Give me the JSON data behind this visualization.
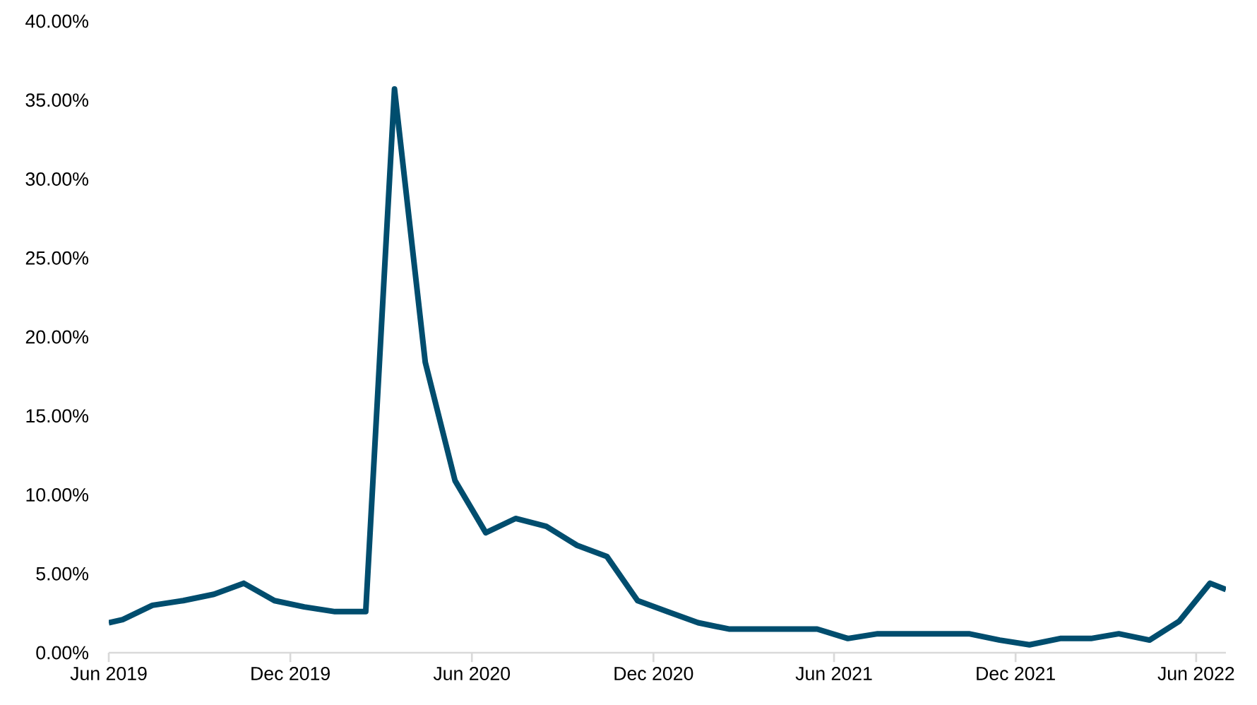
{
  "chart_data": {
    "type": "line",
    "x": [
      "2019-06-01",
      "2019-06-15",
      "2019-07-15",
      "2019-08-15",
      "2019-09-15",
      "2019-10-15",
      "2019-11-15",
      "2019-12-15",
      "2020-01-15",
      "2020-02-15",
      "2020-03-15",
      "2020-04-15",
      "2020-05-15",
      "2020-06-15",
      "2020-07-15",
      "2020-08-15",
      "2020-09-15",
      "2020-10-15",
      "2020-11-15",
      "2020-12-15",
      "2021-01-15",
      "2021-02-15",
      "2021-03-15",
      "2021-04-15",
      "2021-05-15",
      "2021-06-15",
      "2021-07-15",
      "2021-08-15",
      "2021-09-15",
      "2021-10-15",
      "2021-11-15",
      "2021-12-15",
      "2022-01-15",
      "2022-02-15",
      "2022-03-15",
      "2022-04-15",
      "2022-05-15",
      "2022-06-15",
      "2022-07-01"
    ],
    "series": [
      {
        "color": "#004d6e",
        "values": [
          1.9,
          2.1,
          3.0,
          3.3,
          3.7,
          4.4,
          3.3,
          2.9,
          2.6,
          2.6,
          35.7,
          18.4,
          10.9,
          7.6,
          8.5,
          8.0,
          6.8,
          6.1,
          3.3,
          2.6,
          1.9,
          1.5,
          1.5,
          1.5,
          1.5,
          0.9,
          1.2,
          1.2,
          1.2,
          1.2,
          0.8,
          0.5,
          0.9,
          0.9,
          1.2,
          0.8,
          2.0,
          4.4,
          4.0
        ]
      }
    ],
    "xlim": [
      "2019-06-01",
      "2022-07-01"
    ],
    "xticks": [
      {
        "value": "2019-06-01",
        "label": "Jun 2019"
      },
      {
        "value": "2019-12-01",
        "label": "Dec 2019"
      },
      {
        "value": "2020-06-01",
        "label": "Jun 2020"
      },
      {
        "value": "2020-12-01",
        "label": "Dec 2020"
      },
      {
        "value": "2021-06-01",
        "label": "Jun 2021"
      },
      {
        "value": "2021-12-01",
        "label": "Dec 2021"
      },
      {
        "value": "2022-06-01",
        "label": "Jun 2022"
      }
    ],
    "ylim": [
      0,
      40
    ],
    "yticks": [
      {
        "value": 0,
        "label": "0.00%"
      },
      {
        "value": 5,
        "label": "5.00%"
      },
      {
        "value": 10,
        "label": "10.00%"
      },
      {
        "value": 15,
        "label": "15.00%"
      },
      {
        "value": 20,
        "label": "20.00%"
      },
      {
        "value": 25,
        "label": "25.00%"
      },
      {
        "value": 30,
        "label": "30.00%"
      },
      {
        "value": 35,
        "label": "35.00%"
      },
      {
        "value": 40,
        "label": "40.00%"
      }
    ],
    "grid": false,
    "marker": "none",
    "line_style": "solid"
  }
}
